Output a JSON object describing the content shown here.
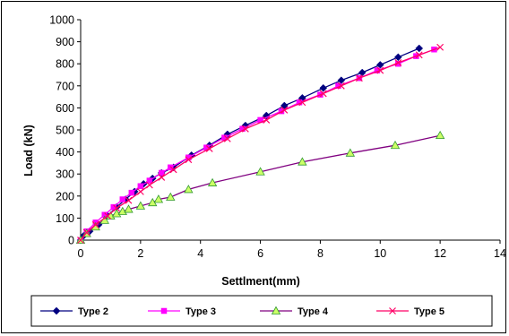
{
  "chart_data": {
    "type": "line",
    "title": "",
    "xlabel": "Settlment(mm)",
    "ylabel": "Load (kN)",
    "xlim": [
      0,
      14
    ],
    "ylim": [
      0,
      1000
    ],
    "x_ticks": [
      "0",
      "2",
      "4",
      "6",
      "8",
      "10",
      "12",
      "14"
    ],
    "y_ticks": [
      "0",
      "100",
      "200",
      "300",
      "400",
      "500",
      "600",
      "700",
      "800",
      "900",
      "1000"
    ],
    "grid": false,
    "legend_position": "bottom",
    "series": [
      {
        "name": "Type 2",
        "color": "#000080",
        "marker": "diamond",
        "x": [
          0,
          0.1,
          0.3,
          0.6,
          0.9,
          1.2,
          1.5,
          1.8,
          2.1,
          2.4,
          2.7,
          3.1,
          3.7,
          4.3,
          4.9,
          5.5,
          6.2,
          6.8,
          7.4,
          8.1,
          8.7,
          9.4,
          10.0,
          10.6,
          11.3
        ],
        "y": [
          0,
          20,
          40,
          70,
          110,
          150,
          185,
          220,
          255,
          280,
          305,
          330,
          385,
          430,
          480,
          520,
          565,
          610,
          645,
          690,
          725,
          760,
          795,
          830,
          870
        ]
      },
      {
        "name": "Type 3",
        "color": "#ff00ff",
        "marker": "square",
        "x": [
          0,
          0.2,
          0.5,
          0.8,
          1.1,
          1.4,
          1.7,
          2.0,
          2.3,
          2.7,
          3.0,
          3.6,
          4.2,
          4.8,
          5.4,
          6.0,
          6.7,
          7.3,
          8.0,
          8.6,
          9.3,
          9.9,
          10.6,
          11.2,
          11.8
        ],
        "y": [
          0,
          40,
          80,
          115,
          150,
          185,
          215,
          245,
          270,
          305,
          330,
          375,
          420,
          465,
          505,
          545,
          585,
          625,
          660,
          700,
          735,
          770,
          800,
          835,
          865
        ]
      },
      {
        "name": "Type 4",
        "color": "#800080",
        "marker": "triangle",
        "x": [
          0,
          0.2,
          0.5,
          0.8,
          1.0,
          1.2,
          1.4,
          1.6,
          2.0,
          2.4,
          2.6,
          3.0,
          3.6,
          4.4,
          6.0,
          7.4,
          9.0,
          10.5,
          12.0
        ],
        "y": [
          0,
          30,
          60,
          90,
          110,
          120,
          130,
          140,
          155,
          170,
          185,
          195,
          230,
          260,
          310,
          355,
          395,
          430,
          475
        ],
        "marker_fill": "#ccff66"
      },
      {
        "name": "Type 5",
        "color": "#ff0066",
        "marker": "x",
        "x": [
          0,
          0.2,
          0.5,
          0.9,
          1.2,
          1.6,
          2.0,
          2.3,
          2.7,
          3.1,
          3.6,
          4.3,
          4.9,
          5.5,
          6.2,
          6.8,
          7.4,
          8.1,
          8.7,
          9.3,
          10.0,
          10.6,
          11.3,
          12.0
        ],
        "y": [
          0,
          35,
          70,
          110,
          145,
          180,
          220,
          250,
          285,
          320,
          365,
          415,
          460,
          505,
          545,
          590,
          625,
          665,
          700,
          735,
          770,
          805,
          840,
          875
        ]
      }
    ]
  }
}
